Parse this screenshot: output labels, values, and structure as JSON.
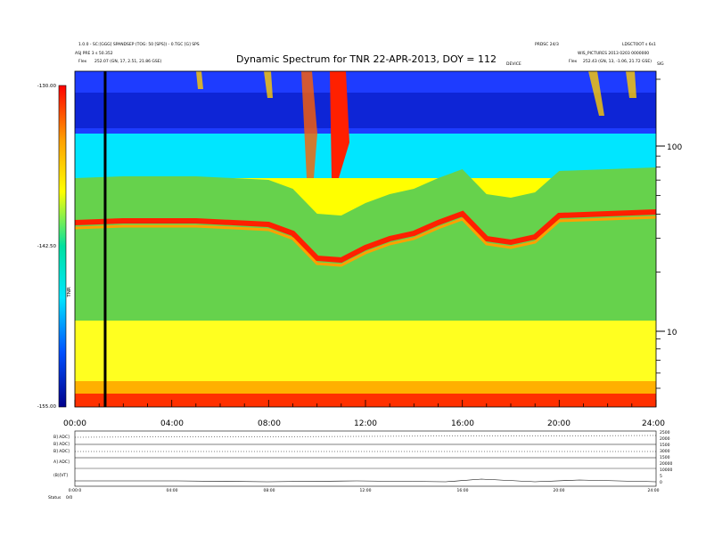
{
  "header": {
    "left_line1": "1.0.0 - SC:[GGG] SPANDSEP (TOG: 50 [SPS]) - 0.TGC [G] SPS",
    "left_line2": "ASJ PRE 3 s 50.352",
    "left_line3_label": "Flex",
    "left_line3_value": "252.07 (GN, 17, 2.51, 21.86 GSE)",
    "right_line1a": "PRDSC 24/3",
    "right_line1b": "LDSCTOOT s 6s1",
    "right_line2": "WIS_PICTURES  2013 0203 0000000",
    "right_line3_label": "Flex",
    "right_line3_value": "252.43 (GN, 13, -1.06, 21.72 GSE)",
    "small_center": "DEVICE",
    "small_right": "SIG"
  },
  "chart_data": {
    "type": "heatmap",
    "title": "Dynamic Spectrum for TNR 22-APR-2013, DOY = 112",
    "x_tick_labels": [
      "00:00",
      "04:00",
      "08:00",
      "12:00",
      "16:00",
      "20:00",
      "24:00"
    ],
    "x_range_hours": [
      0,
      24
    ],
    "y_scale": "log",
    "y_tick_labels": [
      "100",
      "10"
    ],
    "y_range": [
      4,
      220
    ],
    "colorbar": {
      "ticks": [
        "-130.00",
        "-142.50",
        "-155.00"
      ],
      "range": [
        -155,
        -130
      ],
      "label": "TNR"
    },
    "vertical_marker_hour": 1.25,
    "colors": {
      "dark_blue": "#00008b",
      "blue": "#1e3cff",
      "cyan": "#00e6ff",
      "green": "#5ad44a",
      "yellow": "#ffff00",
      "orange": "#ff9800",
      "red": "#ff0000"
    }
  },
  "lower_panel": {
    "row_labels": [
      "B] ADC]",
      "B] ADC]",
      "B] ADC]",
      "A] ADC]",
      "(B)[VT]"
    ],
    "right_labels": [
      "2500",
      "2000",
      "1500",
      "3000",
      "1500",
      "20000",
      "10000",
      "5",
      "0"
    ],
    "x_tick_labels": [
      "0:00:0",
      "04:00",
      "08:00",
      "12:00",
      "16:00",
      "20:00",
      "24:00"
    ],
    "footer_left": "Status",
    "footer_value": "0/0"
  }
}
